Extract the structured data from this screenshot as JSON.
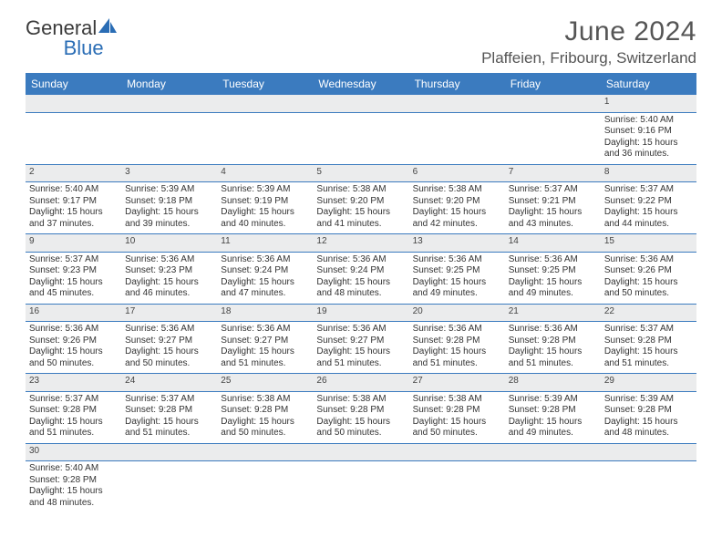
{
  "brand": {
    "part1": "General",
    "part2": "Blue"
  },
  "title": {
    "month": "June 2024",
    "location": "Plaffeien, Fribourg, Switzerland"
  },
  "colors": {
    "header_blue": "#3b7bbf",
    "light_gray": "#ebeced",
    "text": "#333333",
    "logo_blue": "#2a6db5"
  },
  "weekdays": [
    "Sunday",
    "Monday",
    "Tuesday",
    "Wednesday",
    "Thursday",
    "Friday",
    "Saturday"
  ],
  "weeks": [
    {
      "nums": [
        "",
        "",
        "",
        "",
        "",
        "",
        "1"
      ],
      "cells": [
        null,
        null,
        null,
        null,
        null,
        null,
        {
          "sunrise": "5:40 AM",
          "sunset": "9:16 PM",
          "dl1": "Daylight: 15 hours",
          "dl2": "and 36 minutes."
        }
      ]
    },
    {
      "nums": [
        "2",
        "3",
        "4",
        "5",
        "6",
        "7",
        "8"
      ],
      "cells": [
        {
          "sunrise": "5:40 AM",
          "sunset": "9:17 PM",
          "dl1": "Daylight: 15 hours",
          "dl2": "and 37 minutes."
        },
        {
          "sunrise": "5:39 AM",
          "sunset": "9:18 PM",
          "dl1": "Daylight: 15 hours",
          "dl2": "and 39 minutes."
        },
        {
          "sunrise": "5:39 AM",
          "sunset": "9:19 PM",
          "dl1": "Daylight: 15 hours",
          "dl2": "and 40 minutes."
        },
        {
          "sunrise": "5:38 AM",
          "sunset": "9:20 PM",
          "dl1": "Daylight: 15 hours",
          "dl2": "and 41 minutes."
        },
        {
          "sunrise": "5:38 AM",
          "sunset": "9:20 PM",
          "dl1": "Daylight: 15 hours",
          "dl2": "and 42 minutes."
        },
        {
          "sunrise": "5:37 AM",
          "sunset": "9:21 PM",
          "dl1": "Daylight: 15 hours",
          "dl2": "and 43 minutes."
        },
        {
          "sunrise": "5:37 AM",
          "sunset": "9:22 PM",
          "dl1": "Daylight: 15 hours",
          "dl2": "and 44 minutes."
        }
      ]
    },
    {
      "nums": [
        "9",
        "10",
        "11",
        "12",
        "13",
        "14",
        "15"
      ],
      "cells": [
        {
          "sunrise": "5:37 AM",
          "sunset": "9:23 PM",
          "dl1": "Daylight: 15 hours",
          "dl2": "and 45 minutes."
        },
        {
          "sunrise": "5:36 AM",
          "sunset": "9:23 PM",
          "dl1": "Daylight: 15 hours",
          "dl2": "and 46 minutes."
        },
        {
          "sunrise": "5:36 AM",
          "sunset": "9:24 PM",
          "dl1": "Daylight: 15 hours",
          "dl2": "and 47 minutes."
        },
        {
          "sunrise": "5:36 AM",
          "sunset": "9:24 PM",
          "dl1": "Daylight: 15 hours",
          "dl2": "and 48 minutes."
        },
        {
          "sunrise": "5:36 AM",
          "sunset": "9:25 PM",
          "dl1": "Daylight: 15 hours",
          "dl2": "and 49 minutes."
        },
        {
          "sunrise": "5:36 AM",
          "sunset": "9:25 PM",
          "dl1": "Daylight: 15 hours",
          "dl2": "and 49 minutes."
        },
        {
          "sunrise": "5:36 AM",
          "sunset": "9:26 PM",
          "dl1": "Daylight: 15 hours",
          "dl2": "and 50 minutes."
        }
      ]
    },
    {
      "nums": [
        "16",
        "17",
        "18",
        "19",
        "20",
        "21",
        "22"
      ],
      "cells": [
        {
          "sunrise": "5:36 AM",
          "sunset": "9:26 PM",
          "dl1": "Daylight: 15 hours",
          "dl2": "and 50 minutes."
        },
        {
          "sunrise": "5:36 AM",
          "sunset": "9:27 PM",
          "dl1": "Daylight: 15 hours",
          "dl2": "and 50 minutes."
        },
        {
          "sunrise": "5:36 AM",
          "sunset": "9:27 PM",
          "dl1": "Daylight: 15 hours",
          "dl2": "and 51 minutes."
        },
        {
          "sunrise": "5:36 AM",
          "sunset": "9:27 PM",
          "dl1": "Daylight: 15 hours",
          "dl2": "and 51 minutes."
        },
        {
          "sunrise": "5:36 AM",
          "sunset": "9:28 PM",
          "dl1": "Daylight: 15 hours",
          "dl2": "and 51 minutes."
        },
        {
          "sunrise": "5:36 AM",
          "sunset": "9:28 PM",
          "dl1": "Daylight: 15 hours",
          "dl2": "and 51 minutes."
        },
        {
          "sunrise": "5:37 AM",
          "sunset": "9:28 PM",
          "dl1": "Daylight: 15 hours",
          "dl2": "and 51 minutes."
        }
      ]
    },
    {
      "nums": [
        "23",
        "24",
        "25",
        "26",
        "27",
        "28",
        "29"
      ],
      "cells": [
        {
          "sunrise": "5:37 AM",
          "sunset": "9:28 PM",
          "dl1": "Daylight: 15 hours",
          "dl2": "and 51 minutes."
        },
        {
          "sunrise": "5:37 AM",
          "sunset": "9:28 PM",
          "dl1": "Daylight: 15 hours",
          "dl2": "and 51 minutes."
        },
        {
          "sunrise": "5:38 AM",
          "sunset": "9:28 PM",
          "dl1": "Daylight: 15 hours",
          "dl2": "and 50 minutes."
        },
        {
          "sunrise": "5:38 AM",
          "sunset": "9:28 PM",
          "dl1": "Daylight: 15 hours",
          "dl2": "and 50 minutes."
        },
        {
          "sunrise": "5:38 AM",
          "sunset": "9:28 PM",
          "dl1": "Daylight: 15 hours",
          "dl2": "and 50 minutes."
        },
        {
          "sunrise": "5:39 AM",
          "sunset": "9:28 PM",
          "dl1": "Daylight: 15 hours",
          "dl2": "and 49 minutes."
        },
        {
          "sunrise": "5:39 AM",
          "sunset": "9:28 PM",
          "dl1": "Daylight: 15 hours",
          "dl2": "and 48 minutes."
        }
      ]
    },
    {
      "nums": [
        "30",
        "",
        "",
        "",
        "",
        "",
        ""
      ],
      "cells": [
        {
          "sunrise": "5:40 AM",
          "sunset": "9:28 PM",
          "dl1": "Daylight: 15 hours",
          "dl2": "and 48 minutes."
        },
        null,
        null,
        null,
        null,
        null,
        null
      ]
    }
  ],
  "labels": {
    "sunrise": "Sunrise: ",
    "sunset": "Sunset: "
  }
}
